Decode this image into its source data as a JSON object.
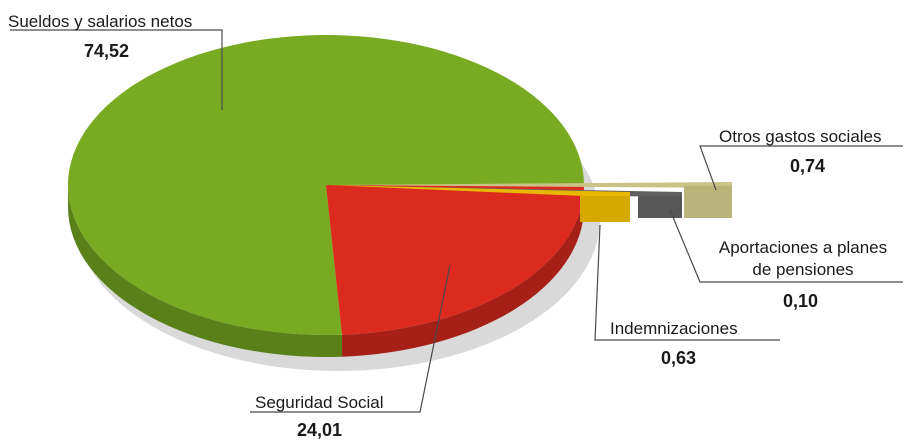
{
  "chart_data": {
    "type": "pie",
    "slices": [
      {
        "label": "Sueldos y salarios netos",
        "value": 74.52,
        "value_label": "74,52",
        "color": "#78aa22"
      },
      {
        "label": "Seguridad Social",
        "value": 24.01,
        "value_label": "24,01",
        "color": "#dd2a1e"
      },
      {
        "label": "Indemnizaciones",
        "value": 0.63,
        "value_label": "0,63",
        "color": "#e8b800"
      },
      {
        "label": "Aportaciones a planes de pensiones",
        "label_lines": [
          "Aportaciones a planes",
          "de pensiones"
        ],
        "value": 0.1,
        "value_label": "0,10",
        "color": "#5f5f5f"
      },
      {
        "label": "Otros gastos sociales",
        "value": 0.74,
        "value_label": "0,74",
        "color": "#c9c485"
      }
    ],
    "style": "3d-exploded"
  }
}
